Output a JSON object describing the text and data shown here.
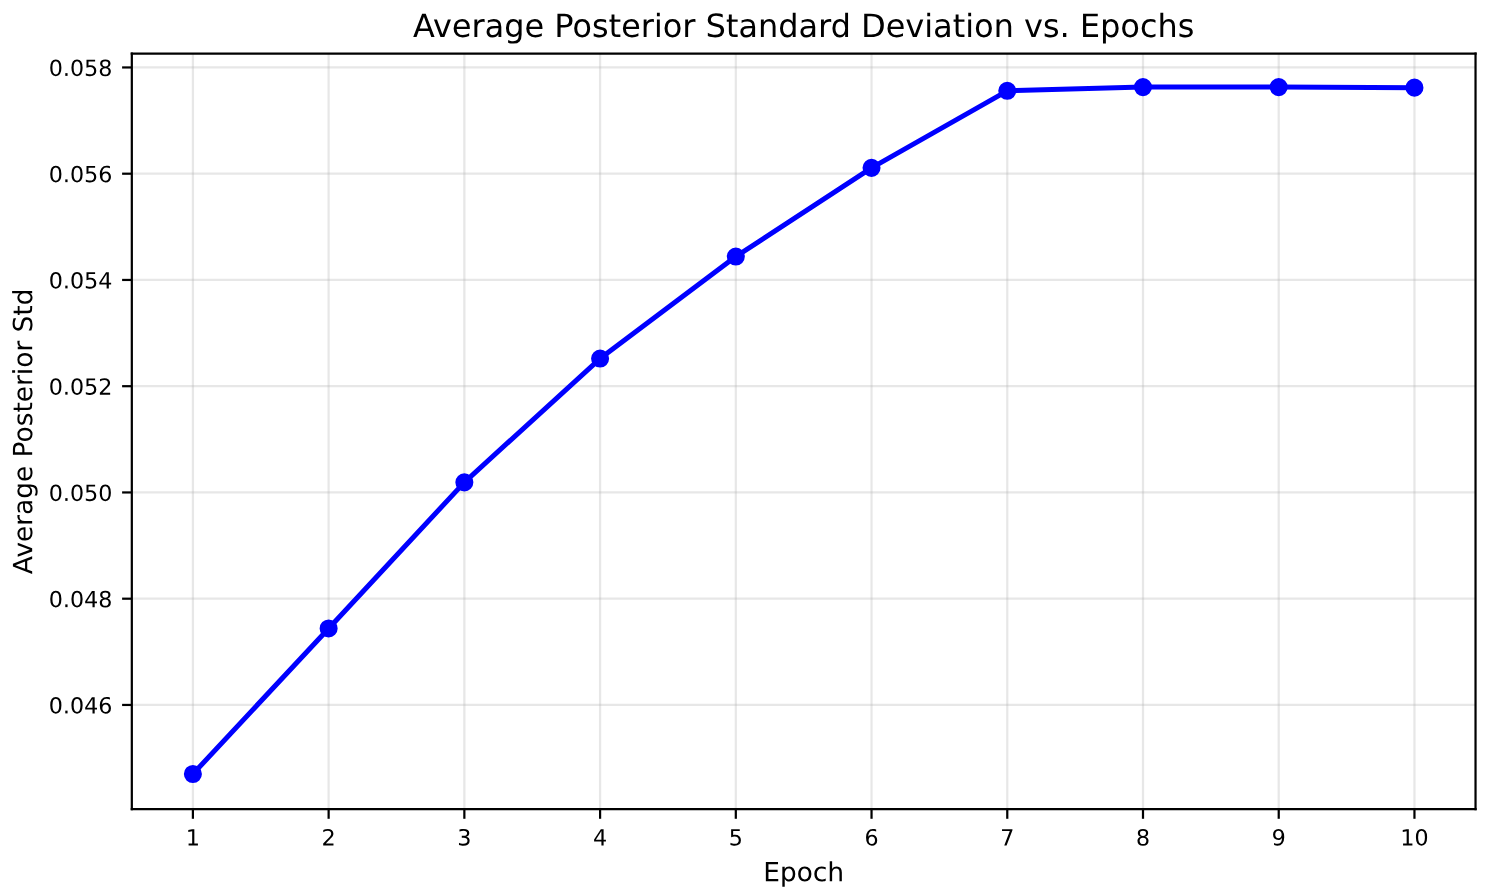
{
  "chart_data": {
    "type": "line",
    "title": "Average Posterior Standard Deviation vs. Epochs",
    "xlabel": "Epoch",
    "ylabel": "Average Posterior Std",
    "x": [
      1,
      2,
      3,
      4,
      5,
      6,
      7,
      8,
      9,
      10
    ],
    "series": [
      {
        "color": "#0000ff",
        "values": [
          0.0447,
          0.04744,
          0.05019,
          0.05252,
          0.05444,
          0.05611,
          0.05756,
          0.05763,
          0.05763,
          0.05762
        ]
      }
    ],
    "xlim": [
      0.55,
      10.45
    ],
    "xticks": [
      1,
      2,
      3,
      4,
      5,
      6,
      7,
      8,
      9,
      10
    ],
    "ylim": [
      0.04404,
      0.05826
    ],
    "yticks": [
      {
        "value": 0.046,
        "label": "0.046"
      },
      {
        "value": 0.048,
        "label": "0.048"
      },
      {
        "value": 0.05,
        "label": "0.050"
      },
      {
        "value": 0.052,
        "label": "0.052"
      },
      {
        "value": 0.054,
        "label": "0.054"
      },
      {
        "value": 0.056,
        "label": "0.056"
      },
      {
        "value": 0.058,
        "label": "0.058"
      }
    ],
    "grid": true,
    "marker": "circle",
    "line_style": "solid",
    "legend": false
  }
}
